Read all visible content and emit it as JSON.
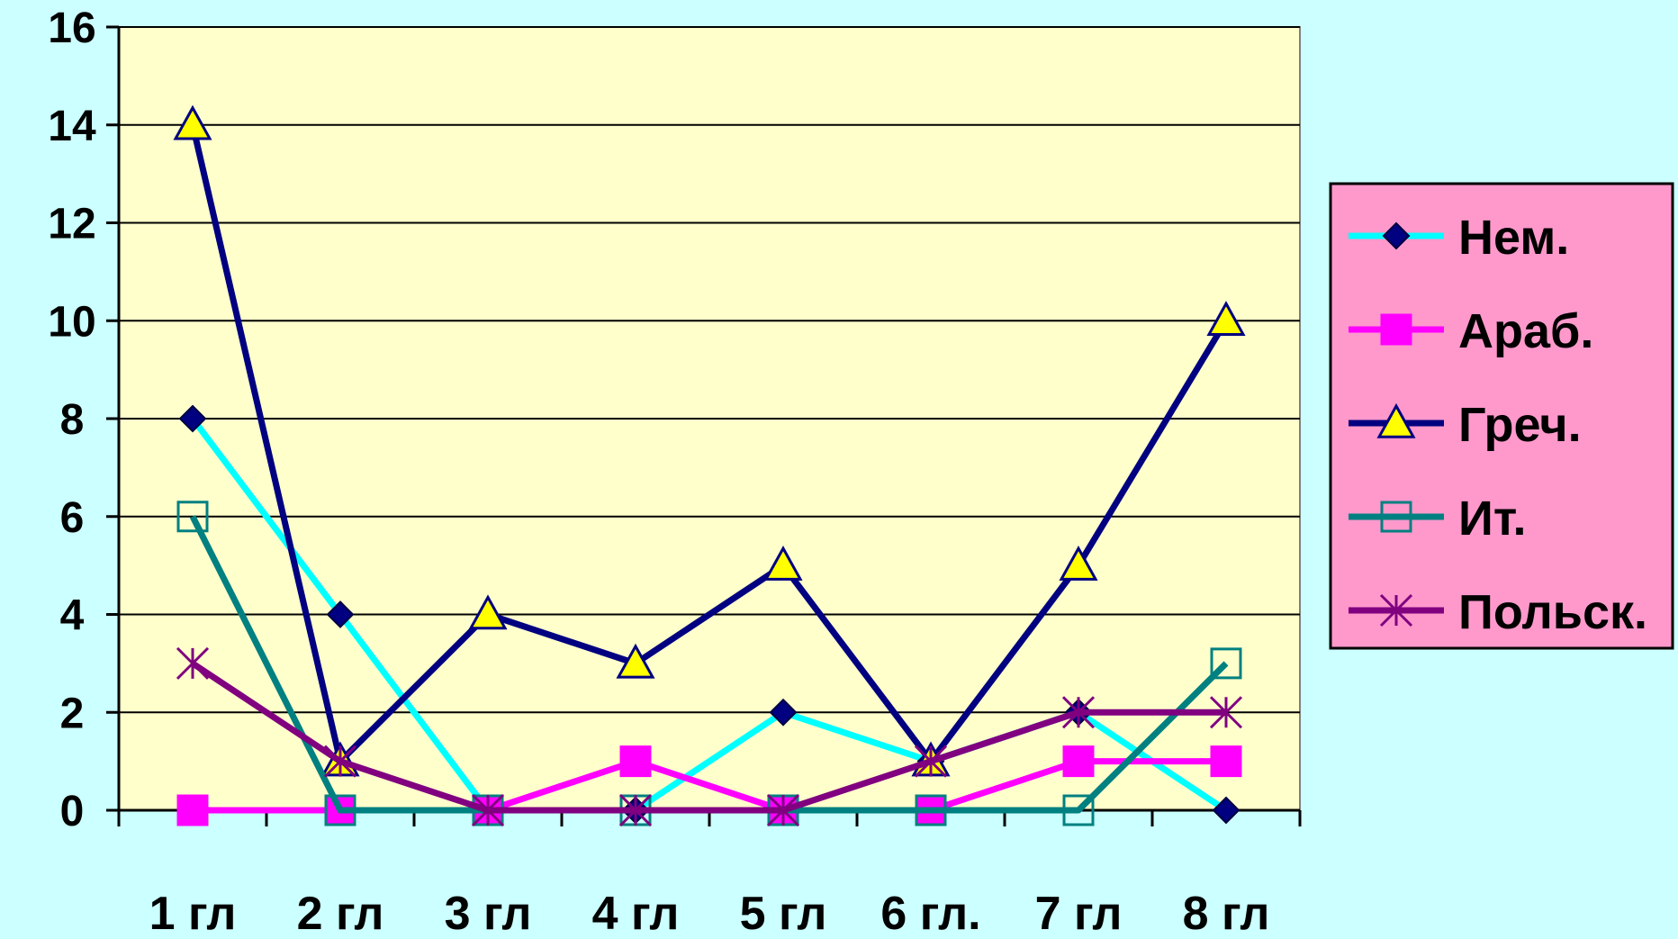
{
  "chart_data": {
    "type": "line",
    "title": "",
    "xlabel": "",
    "ylabel": "",
    "categories": [
      "1 гл",
      "2 гл",
      "3 гл",
      "4 гл",
      "5 гл",
      "6 гл.",
      "7 гл",
      "8 гл"
    ],
    "ylim": [
      0,
      16
    ],
    "yticks": [
      "0",
      "2",
      "4",
      "6",
      "8",
      "10",
      "12",
      "14",
      "16"
    ],
    "grid": true,
    "legend_position": "right",
    "series": [
      {
        "name": "Нем.",
        "values": [
          8,
          4,
          0,
          0,
          2,
          1,
          2,
          0
        ],
        "color": "#00ffff",
        "marker_color": "#000080",
        "marker": "diamond"
      },
      {
        "name": "Араб.",
        "values": [
          0,
          0,
          0,
          1,
          0,
          0,
          1,
          1
        ],
        "color": "#ff00ff",
        "marker_color": "#ff00ff",
        "marker": "square"
      },
      {
        "name": "Греч.",
        "values": [
          14,
          1,
          4,
          3,
          5,
          1,
          5,
          10
        ],
        "color": "#000080",
        "marker_color": "#ffff00",
        "marker": "triangle"
      },
      {
        "name": "Ит.",
        "values": [
          6,
          0,
          0,
          0,
          0,
          0,
          0,
          3
        ],
        "color": "#008080",
        "marker_color": "#008080",
        "marker": "open-square"
      },
      {
        "name": "Польск.",
        "values": [
          3,
          1,
          0,
          0,
          0,
          1,
          2,
          2
        ],
        "color": "#800080",
        "marker_color": "#800080",
        "marker": "star"
      }
    ]
  },
  "colors": {
    "background": "#ccffff",
    "plot_area": "#ffffcc",
    "legend_bg": "#ff99cc"
  }
}
